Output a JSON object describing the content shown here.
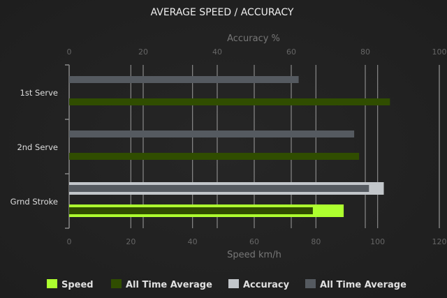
{
  "chart_data": {
    "type": "bar",
    "orientation": "horizontal",
    "title": "AVERAGE SPEED / ACCURACY",
    "categories": [
      "1st Serve",
      "2nd Serve",
      "Grnd Stroke"
    ],
    "axes": {
      "top": {
        "label": "Accuracy %",
        "range": [
          0,
          100
        ],
        "ticks": [
          "0",
          "20",
          "40",
          "60",
          "80",
          "100"
        ]
      },
      "bottom": {
        "label": "Speed km/h",
        "range": [
          0,
          120
        ],
        "ticks": [
          "0",
          "20",
          "40",
          "60",
          "80",
          "100",
          "120"
        ]
      }
    },
    "grid": true,
    "legend_position": "bottom",
    "series": [
      {
        "name": "Speed",
        "axis": "bottom",
        "color": "#adff2f",
        "values": [
          null,
          null,
          89
        ]
      },
      {
        "name": "All Time Average",
        "axis": "bottom",
        "color": "#304d00",
        "values": [
          104,
          94,
          79
        ]
      },
      {
        "name": "Accuracy",
        "axis": "top",
        "color": "#c2c6ca",
        "values": [
          null,
          null,
          85
        ]
      },
      {
        "name": "All Time Average",
        "axis": "top",
        "color": "#555a60",
        "values": [
          62,
          77,
          81
        ]
      }
    ]
  }
}
